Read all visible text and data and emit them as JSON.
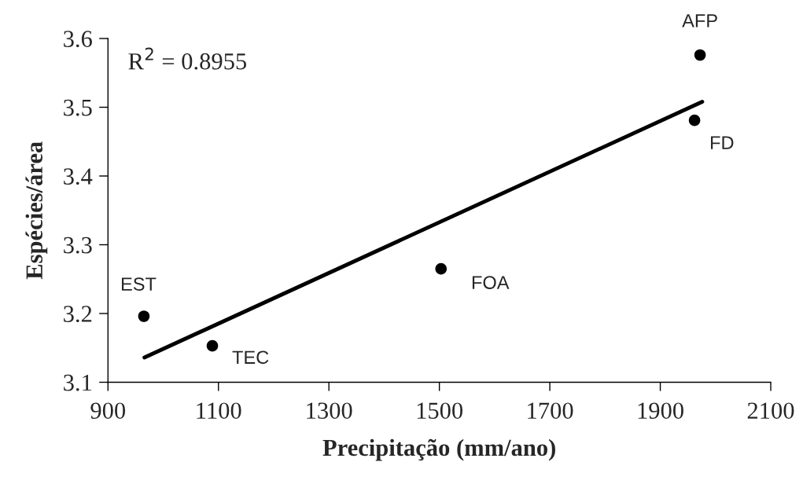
{
  "chart_data": {
    "type": "scatter",
    "xlabel": "Precipitação (mm/ano)",
    "ylabel": "Espécies/área",
    "xlim": [
      900,
      2100
    ],
    "xticks": [
      900,
      1100,
      1300,
      1500,
      1700,
      1900,
      2100
    ],
    "ylim": [
      3.1,
      3.6
    ],
    "yticks": [
      3.1,
      3.2,
      3.3,
      3.4,
      3.5,
      3.6
    ],
    "grid": false,
    "legend": false,
    "series": [
      {
        "color": "#000000",
        "marker": "circle",
        "x": [
          965,
          1089,
          1503,
          1972,
          1962
        ],
        "values": [
          3.196,
          3.153,
          3.265,
          3.576,
          3.481
        ]
      },
      {
        "type": "line",
        "color": "#000000",
        "line_style": "solid",
        "x": [
          966,
          1976
        ],
        "values": [
          3.136,
          3.508
        ]
      }
    ],
    "annotations": [
      "R$^{2}$ = 0.8955",
      {
        "text": "EST",
        "x": 965,
        "y": 3.196
      },
      {
        "text": "TEC",
        "x": 1089,
        "y": 3.153
      },
      {
        "text": "FOA",
        "x": 1503,
        "y": 3.265
      },
      {
        "text": "AFP",
        "x": 1972,
        "y": 3.576
      },
      {
        "text": "FD",
        "x": 1962,
        "y": 3.481
      }
    ]
  }
}
